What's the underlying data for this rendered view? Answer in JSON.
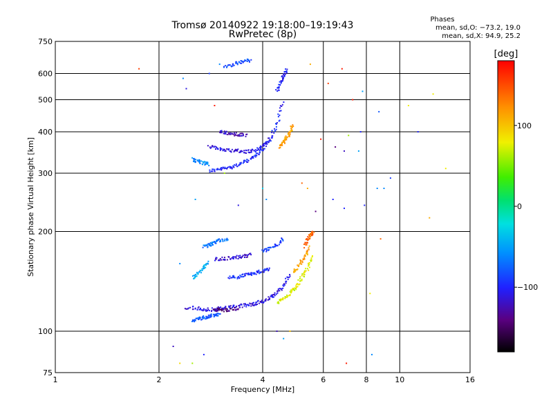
{
  "chart_data": {
    "type": "scatter",
    "title": "Tromsø 20140922 19:18:00–19:19:43",
    "subtitle": "RwPretec (8p)",
    "xlabel": "Frequency [MHz]",
    "ylabel": "Stationary phase Virtual Height [km]",
    "x_scale": "log",
    "y_scale": "log",
    "xlim": [
      1,
      16
    ],
    "ylim": [
      75,
      750
    ],
    "x_ticks": [
      1,
      2,
      4,
      6,
      8,
      10,
      16
    ],
    "x_tick_labels": [
      "1",
      "2",
      "4",
      "6",
      "8",
      "10",
      "16"
    ],
    "y_ticks": [
      75,
      100,
      200,
      300,
      400,
      500,
      600,
      750
    ],
    "y_tick_labels": [
      "75",
      "100",
      "200",
      "300",
      "400",
      "500",
      "600",
      "750"
    ],
    "grid": true,
    "stats": {
      "heading": "Phases",
      "line_o": "mean, sd,O: −73.2, 19.0",
      "line_x": "mean, sd,X:  94.9, 25.2"
    },
    "colorbar": {
      "label": "[deg]",
      "range": [
        -180,
        180
      ],
      "ticks": [
        100,
        0,
        -100
      ],
      "tick_labels": [
        "100",
        "0",
        "−100"
      ]
    },
    "traces": [
      {
        "x": [
          2.8,
          3.0,
          3.2,
          3.4,
          3.6,
          3.8,
          4.0,
          4.2,
          4.4,
          4.6
        ],
        "y": [
          305,
          308,
          312,
          318,
          326,
          338,
          355,
          380,
          420,
          500
        ],
        "phase": -100
      },
      {
        "x": [
          2.8,
          3.0,
          3.2,
          3.4,
          3.6,
          3.8,
          4.0,
          4.2
        ],
        "y": [
          360,
          355,
          352,
          350,
          348,
          352,
          362,
          380
        ],
        "phase": -110
      },
      {
        "x": [
          3.0,
          3.2,
          3.4,
          3.6
        ],
        "y": [
          400,
          395,
          392,
          390
        ],
        "phase": -120
      },
      {
        "x": [
          4.5,
          4.6,
          4.7,
          4.8,
          4.9
        ],
        "y": [
          360,
          372,
          385,
          400,
          420
        ],
        "phase": 115
      },
      {
        "x": [
          4.4,
          4.5,
          4.6,
          4.7
        ],
        "y": [
          530,
          560,
          590,
          620
        ],
        "phase": -100
      },
      {
        "x": [
          3.1,
          3.3,
          3.5,
          3.7
        ],
        "y": [
          630,
          640,
          650,
          660
        ],
        "phase": -85
      },
      {
        "x": [
          2.5,
          2.6,
          2.7,
          2.8
        ],
        "y": [
          330,
          325,
          322,
          320
        ],
        "phase": -60
      },
      {
        "x": [
          2.4,
          2.6,
          2.8,
          3.0,
          3.2,
          3.4,
          3.6,
          3.8,
          4.0,
          4.2,
          4.4,
          4.6,
          4.8
        ],
        "y": [
          118,
          117,
          116,
          117,
          118,
          119,
          120,
          121,
          123,
          126,
          130,
          138,
          148
        ],
        "phase": -110
      },
      {
        "x": [
          2.9,
          3.0,
          3.2,
          3.4
        ],
        "y": [
          116,
          116,
          116,
          117
        ],
        "phase": -140
      },
      {
        "x": [
          4.4,
          4.6,
          4.8,
          5.0,
          5.2,
          5.4,
          5.6
        ],
        "y": [
          122,
          125,
          130,
          136,
          145,
          155,
          170
        ],
        "phase": 75
      },
      {
        "x": [
          4.9,
          5.1,
          5.3,
          5.5
        ],
        "y": [
          150,
          158,
          168,
          180
        ],
        "phase": 115
      },
      {
        "x": [
          2.5,
          2.6,
          2.7,
          2.8,
          2.9,
          3.0
        ],
        "y": [
          108,
          109,
          110,
          111,
          112,
          113
        ],
        "phase": -80
      },
      {
        "x": [
          2.5,
          2.6,
          2.7,
          2.8
        ],
        "y": [
          145,
          150,
          156,
          162
        ],
        "phase": -45
      },
      {
        "x": [
          2.9,
          3.1,
          3.3,
          3.5,
          3.7
        ],
        "y": [
          165,
          166,
          167,
          168,
          170
        ],
        "phase": -115
      },
      {
        "x": [
          3.2,
          3.4,
          3.6,
          3.8,
          4.0,
          4.2
        ],
        "y": [
          145,
          146,
          148,
          150,
          152,
          154
        ],
        "phase": -95
      },
      {
        "x": [
          2.7,
          2.8,
          2.9,
          3.0,
          3.2
        ],
        "y": [
          180,
          182,
          185,
          188,
          190
        ],
        "phase": -70
      },
      {
        "x": [
          4.0,
          4.2,
          4.4,
          4.6
        ],
        "y": [
          175,
          178,
          182,
          190
        ],
        "phase": -90
      },
      {
        "x": [
          5.3,
          5.4,
          5.5,
          5.6
        ],
        "y": [
          180,
          190,
          195,
          200
        ],
        "phase": 140
      }
    ],
    "points": [
      [
        1.75,
        620,
        155
      ],
      [
        2.2,
        90,
        -120
      ],
      [
        2.3,
        80,
        90
      ],
      [
        2.3,
        160,
        -60
      ],
      [
        2.35,
        580,
        -60
      ],
      [
        2.4,
        540,
        -110
      ],
      [
        2.5,
        80,
        60
      ],
      [
        2.55,
        250,
        -50
      ],
      [
        2.7,
        85,
        -100
      ],
      [
        2.8,
        600,
        -90
      ],
      [
        2.9,
        480,
        170
      ],
      [
        3.0,
        640,
        -60
      ],
      [
        3.1,
        300,
        60
      ],
      [
        3.4,
        240,
        -110
      ],
      [
        4.0,
        270,
        -30
      ],
      [
        4.1,
        250,
        -60
      ],
      [
        4.4,
        100,
        -120
      ],
      [
        4.6,
        95,
        -50
      ],
      [
        4.8,
        100,
        100
      ],
      [
        5.2,
        280,
        140
      ],
      [
        5.4,
        270,
        110
      ],
      [
        5.5,
        640,
        110
      ],
      [
        5.7,
        230,
        -140
      ],
      [
        5.9,
        380,
        170
      ],
      [
        6.2,
        560,
        155
      ],
      [
        6.4,
        250,
        -100
      ],
      [
        6.5,
        360,
        -140
      ],
      [
        6.8,
        620,
        170
      ],
      [
        6.9,
        235,
        -100
      ],
      [
        7.0,
        80,
        170
      ],
      [
        7.1,
        390,
        60
      ],
      [
        7.3,
        500,
        170
      ],
      [
        7.6,
        350,
        -50
      ],
      [
        7.8,
        530,
        -50
      ],
      [
        7.9,
        240,
        -100
      ],
      [
        8.2,
        130,
        80
      ],
      [
        8.3,
        85,
        -60
      ],
      [
        8.6,
        270,
        -60
      ],
      [
        8.8,
        190,
        140
      ],
      [
        9.0,
        270,
        -60
      ],
      [
        9.4,
        290,
        -90
      ],
      [
        10.6,
        480,
        80
      ],
      [
        11.3,
        400,
        -100
      ],
      [
        12.2,
        220,
        110
      ],
      [
        12.5,
        520,
        80
      ],
      [
        13.6,
        310,
        80
      ],
      [
        6.9,
        350,
        -120
      ],
      [
        7.7,
        400,
        -100
      ],
      [
        8.7,
        460,
        -80
      ]
    ]
  }
}
